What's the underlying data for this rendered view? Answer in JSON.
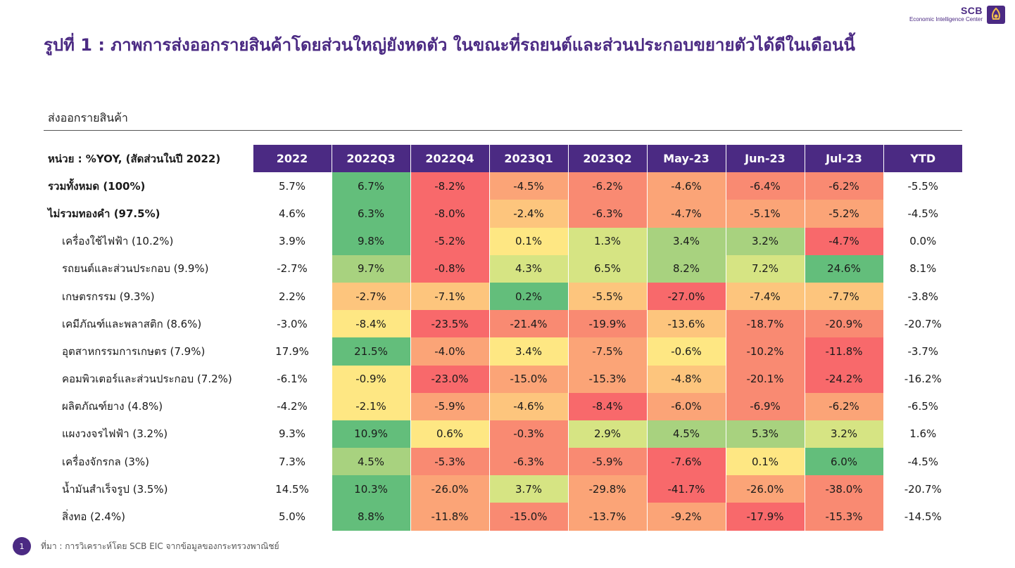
{
  "logo": {
    "brand": "SCB",
    "subtitle": "Economic Intelligence Center"
  },
  "title": "รูปที่ 1 : ภาพการส่งออกรายสินค้าโดยส่วนใหญ่ยังหดตัว ในขณะที่รถยนต์และส่วนประกอบขยายตัวได้ดีในเดือนนี้",
  "section_label": "ส่งออกรายสินค้า",
  "table": {
    "unit_label": "หน่วย : %YOY, (สัดส่วนในปี 2022)",
    "columns": [
      "2022",
      "2022Q3",
      "2022Q4",
      "2023Q1",
      "2023Q2",
      "May-23",
      "Jun-23",
      "Jul-23",
      "YTD"
    ],
    "rows": [
      {
        "label": "รวมทั้งหมด (100%)",
        "values": [
          "5.7%",
          "6.7%",
          "-8.2%",
          "-4.5%",
          "-6.2%",
          "-4.6%",
          "-6.4%",
          "-6.2%",
          "-5.5%"
        ]
      },
      {
        "label": "ไม่รวมทองคำ (97.5%)",
        "values": [
          "4.6%",
          "6.3%",
          "-8.0%",
          "-2.4%",
          "-6.3%",
          "-4.7%",
          "-5.1%",
          "-5.2%",
          "-4.5%"
        ]
      },
      {
        "label": "เครื่องใช้ไฟฟ้า (10.2%)",
        "values": [
          "3.9%",
          "9.8%",
          "-5.2%",
          "0.1%",
          "1.3%",
          "3.4%",
          "3.2%",
          "-4.7%",
          "0.0%"
        ]
      },
      {
        "label": "รถยนต์และส่วนประกอบ (9.9%)",
        "values": [
          "-2.7%",
          "9.7%",
          "-0.8%",
          "4.3%",
          "6.5%",
          "8.2%",
          "7.2%",
          "24.6%",
          "8.1%"
        ]
      },
      {
        "label": "เกษตรกรรม (9.3%)",
        "values": [
          "2.2%",
          "-2.7%",
          "-7.1%",
          "0.2%",
          "-5.5%",
          "-27.0%",
          "-7.4%",
          "-7.7%",
          "-3.8%"
        ]
      },
      {
        "label": "เคมีภัณฑ์และพลาสติก (8.6%)",
        "values": [
          "-3.0%",
          "-8.4%",
          "-23.5%",
          "-21.4%",
          "-19.9%",
          "-13.6%",
          "-18.7%",
          "-20.9%",
          "-20.7%"
        ]
      },
      {
        "label": "อุตสาหกรรมการเกษตร (7.9%)",
        "values": [
          "17.9%",
          "21.5%",
          "-4.0%",
          "3.4%",
          "-7.5%",
          "-0.6%",
          "-10.2%",
          "-11.8%",
          "-3.7%"
        ]
      },
      {
        "label": "คอมพิวเตอร์และส่วนประกอบ (7.2%)",
        "values": [
          "-6.1%",
          "-0.9%",
          "-23.0%",
          "-15.0%",
          "-15.3%",
          "-4.8%",
          "-20.1%",
          "-24.2%",
          "-16.2%"
        ]
      },
      {
        "label": "ผลิตภัณฑ์ยาง (4.8%)",
        "values": [
          "-4.2%",
          "-2.1%",
          "-5.9%",
          "-4.6%",
          "-8.4%",
          "-6.0%",
          "-6.9%",
          "-6.2%",
          "-6.5%"
        ]
      },
      {
        "label": "แผงวงจรไฟฟ้า (3.2%)",
        "values": [
          "9.3%",
          "10.9%",
          "0.6%",
          "-0.3%",
          "2.9%",
          "4.5%",
          "5.3%",
          "3.2%",
          "1.6%"
        ]
      },
      {
        "label": "เครื่องจักรกล (3%)",
        "values": [
          "7.3%",
          "4.5%",
          "-5.3%",
          "-6.3%",
          "-5.9%",
          "-7.6%",
          "0.1%",
          "6.0%",
          "-4.5%"
        ]
      },
      {
        "label": "น้ำมันสำเร็จรูป (3.5%)",
        "values": [
          "14.5%",
          "10.3%",
          "-26.0%",
          "3.7%",
          "-29.8%",
          "-41.7%",
          "-26.0%",
          "-38.0%",
          "-20.7%"
        ]
      },
      {
        "label": "สิ่งทอ (2.4%)",
        "values": [
          "5.0%",
          "8.8%",
          "-11.8%",
          "-15.0%",
          "-13.7%",
          "-9.2%",
          "-17.9%",
          "-15.3%",
          "-14.5%"
        ]
      }
    ],
    "colors": {
      "green": "#63be7b",
      "lgreen": "#a8d27f",
      "ygreen": "#d6e483",
      "yellow": "#fee783",
      "lorange": "#fdc57d",
      "orange": "#fba477",
      "salmon": "#f98a72",
      "red": "#f8696b",
      "header": "#4b2a83"
    }
  },
  "footer": {
    "page_number": "1",
    "source": "ที่มา : การวิเคราะห์โดย SCB EIC จากข้อมูลของกระทรวงพาณิชย์"
  }
}
